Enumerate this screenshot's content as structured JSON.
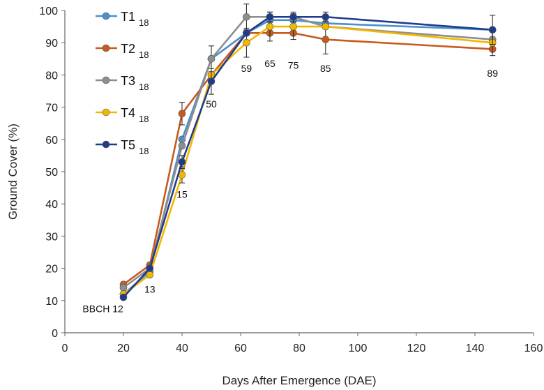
{
  "chart_data": {
    "type": "line",
    "xlabel": "Days After Emergence (DAE)",
    "ylabel": "Ground Cover (%)",
    "xlim": [
      0,
      160
    ],
    "ylim": [
      0,
      100
    ],
    "xticks": [
      0,
      20,
      40,
      60,
      80,
      100,
      120,
      140,
      160
    ],
    "yticks": [
      0,
      10,
      20,
      30,
      40,
      50,
      60,
      70,
      80,
      90,
      100
    ],
    "grid": false,
    "legend_position": "top-left",
    "series": [
      {
        "name": "T1",
        "name_sub": "18",
        "color": "#4A8FD0",
        "x": [
          20,
          29,
          40,
          50,
          62,
          70,
          78,
          89,
          146
        ],
        "y": [
          12,
          19,
          60,
          85,
          93,
          97,
          97,
          96,
          94
        ],
        "err": [
          0,
          0,
          0,
          0,
          0,
          0,
          0,
          0,
          0
        ]
      },
      {
        "name": "T2",
        "name_sub": "18",
        "color": "#C85A1E",
        "x": [
          20,
          29,
          40,
          50,
          62,
          70,
          78,
          89,
          146
        ],
        "y": [
          15,
          21,
          68,
          80,
          93,
          93,
          93,
          91,
          88
        ],
        "err": [
          0,
          0.5,
          3.5,
          0,
          0,
          0,
          0,
          4.5,
          0
        ]
      },
      {
        "name": "T3",
        "name_sub": "18",
        "color": "#8E8E8E",
        "x": [
          20,
          29,
          40,
          50,
          62,
          70,
          78,
          89,
          146
        ],
        "y": [
          14,
          20,
          58,
          85,
          98,
          98,
          98,
          95,
          91
        ],
        "err": [
          0,
          0,
          0,
          4,
          4,
          0,
          0,
          0,
          0
        ]
      },
      {
        "name": "T4",
        "name_sub": "18",
        "color": "#F2B800",
        "x": [
          20,
          29,
          40,
          50,
          62,
          70,
          78,
          89,
          146
        ],
        "y": [
          12,
          18,
          49,
          80,
          90,
          95,
          95,
          95,
          90
        ],
        "err": [
          0,
          0,
          2.5,
          0,
          4.5,
          4.5,
          4,
          0,
          4
        ]
      },
      {
        "name": "T5",
        "name_sub": "18",
        "color": "#1F3C8C",
        "x": [
          20,
          29,
          40,
          50,
          62,
          70,
          78,
          89,
          146
        ],
        "y": [
          11,
          20,
          53,
          78,
          93,
          98,
          98,
          98,
          94
        ],
        "err": [
          0,
          0,
          2,
          4,
          0,
          1.5,
          1.5,
          1.5,
          4.5
        ]
      }
    ],
    "annotations": [
      {
        "text": "BBCH 12",
        "x": 13,
        "y": 7.5
      },
      {
        "text": "13",
        "x": 29,
        "y": 13.5
      },
      {
        "text": "15",
        "x": 40,
        "y": 43
      },
      {
        "text": "50",
        "x": 50,
        "y": 71
      },
      {
        "text": "59",
        "x": 62,
        "y": 82
      },
      {
        "text": "65",
        "x": 70,
        "y": 83.5
      },
      {
        "text": "75",
        "x": 78,
        "y": 83
      },
      {
        "text": "85",
        "x": 89,
        "y": 82
      },
      {
        "text": "89",
        "x": 146,
        "y": 80.5
      }
    ]
  }
}
